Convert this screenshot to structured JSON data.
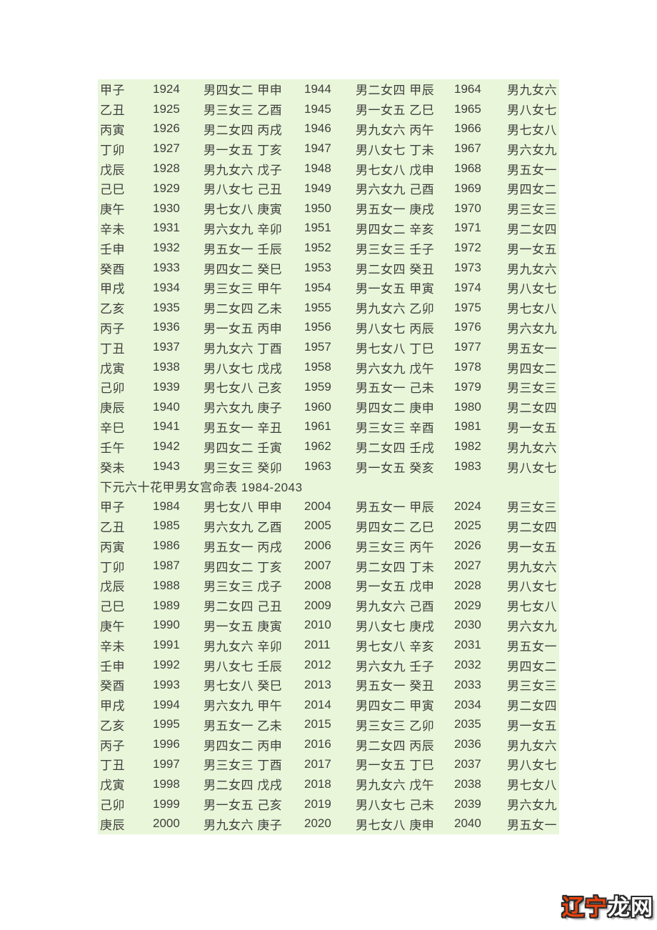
{
  "colors": {
    "page_background": "#ffffff",
    "panel_background": "#e9f6d9",
    "text": "#3e3e3e",
    "watermark_orange": "#e8430e",
    "watermark_white": "#ffffff",
    "watermark_outline": "#2b2b2b"
  },
  "section_heading": "下元六十花甲男女宫命表 1984-2043",
  "table1": {
    "rows": [
      [
        "甲子",
        "1924",
        "男四女二 甲申",
        "1944",
        "男二女四 甲辰",
        "1964",
        "男九女六"
      ],
      [
        "乙丑",
        "1925",
        "男三女三 乙酉",
        "1945",
        "男一女五 乙巳",
        "1965",
        "男八女七"
      ],
      [
        "丙寅",
        "1926",
        "男二女四 丙戌",
        "1946",
        "男九女六 丙午",
        "1966",
        "男七女八"
      ],
      [
        "丁卯",
        "1927",
        "男一女五 丁亥",
        "1947",
        "男八女七 丁未",
        "1967",
        "男六女九"
      ],
      [
        "戊辰",
        "1928",
        "男九女六 戊子",
        "1948",
        "男七女八 戊申",
        "1968",
        "男五女一"
      ],
      [
        "己巳",
        "1929",
        "男八女七 己丑",
        "1949",
        "男六女九 己酉",
        "1969",
        "男四女二"
      ],
      [
        "庚午",
        "1930",
        "男七女八 庚寅",
        "1950",
        "男五女一 庚戌",
        "1970",
        "男三女三"
      ],
      [
        "辛未",
        "1931",
        "男六女九 辛卯",
        "1951",
        "男四女二 辛亥",
        "1971",
        "男二女四"
      ],
      [
        "壬申",
        "1932",
        "男五女一 壬辰",
        "1952",
        "男三女三 壬子",
        "1972",
        "男一女五"
      ],
      [
        "癸酉",
        "1933",
        "男四女二 癸巳",
        "1953",
        "男二女四 癸丑",
        "1973",
        "男九女六"
      ],
      [
        "甲戌",
        "1934",
        "男三女三 甲午",
        "1954",
        "男一女五 甲寅",
        "1974",
        "男八女七"
      ],
      [
        "乙亥",
        "1935",
        "男二女四 乙未",
        "1955",
        "男九女六 乙卯",
        "1975",
        "男七女八"
      ],
      [
        "丙子",
        "1936",
        "男一女五 丙申",
        "1956",
        "男八女七 丙辰",
        "1976",
        "男六女九"
      ],
      [
        "丁丑",
        "1937",
        "男九女六 丁酉",
        "1957",
        "男七女八 丁巳",
        "1977",
        "男五女一"
      ],
      [
        "戊寅",
        "1938",
        "男八女七 戊戌",
        "1958",
        "男六女九 戊午",
        "1978",
        "男四女二"
      ],
      [
        "己卯",
        "1939",
        "男七女八 己亥",
        "1959",
        "男五女一 己未",
        "1979",
        "男三女三"
      ],
      [
        "庚辰",
        "1940",
        "男六女九 庚子",
        "1960",
        "男四女二 庚申",
        "1980",
        "男二女四"
      ],
      [
        "辛巳",
        "1941",
        "男五女一 辛丑",
        "1961",
        "男三女三 辛酉",
        "1981",
        "男一女五"
      ],
      [
        "壬午",
        "1942",
        "男四女二 壬寅",
        "1962",
        "男二女四 壬戌",
        "1982",
        "男九女六"
      ],
      [
        "癸未",
        "1943",
        "男三女三 癸卯",
        "1963",
        "男一女五 癸亥",
        "1983",
        "男八女七"
      ]
    ]
  },
  "table2": {
    "rows": [
      [
        "甲子",
        "1984",
        "男七女八 甲申",
        "2004",
        "男五女一 甲辰",
        "2024",
        "男三女三"
      ],
      [
        "乙丑",
        "1985",
        "男六女九 乙酉",
        "2005",
        "男四女二 乙巳",
        "2025",
        "男二女四"
      ],
      [
        "丙寅",
        "1986",
        "男五女一 丙戌",
        "2006",
        "男三女三 丙午",
        "2026",
        "男一女五"
      ],
      [
        "丁卯",
        "1987",
        "男四女二 丁亥",
        "2007",
        "男二女四 丁未",
        "2027",
        "男九女六"
      ],
      [
        "戊辰",
        "1988",
        "男三女三 戊子",
        "2008",
        "男一女五 戊申",
        "2028",
        "男八女七"
      ],
      [
        "己巳",
        "1989",
        "男二女四 己丑",
        "2009",
        "男九女六 己酉",
        "2029",
        "男七女八"
      ],
      [
        "庚午",
        "1990",
        "男一女五 庚寅",
        "2010",
        "男八女七 庚戌",
        "2030",
        "男六女九"
      ],
      [
        "辛未",
        "1991",
        "男九女六 辛卯",
        "2011",
        "男七女八 辛亥",
        "2031",
        "男五女一"
      ],
      [
        "壬申",
        "1992",
        "男八女七 壬辰",
        "2012",
        "男六女九 壬子",
        "2032",
        "男四女二"
      ],
      [
        "癸酉",
        "1993",
        "男七女八 癸巳",
        "2013",
        "男五女一 癸丑",
        "2033",
        "男三女三"
      ],
      [
        "甲戌",
        "1994",
        "男六女九 甲午",
        "2014",
        "男四女二 甲寅",
        "2034",
        "男二女四"
      ],
      [
        "乙亥",
        "1995",
        "男五女一 乙未",
        "2015",
        "男三女三 乙卯",
        "2035",
        "男一女五"
      ],
      [
        "丙子",
        "1996",
        "男四女二 丙申",
        "2016",
        "男二女四 丙辰",
        "2036",
        "男九女六"
      ],
      [
        "丁丑",
        "1997",
        "男三女三 丁酉",
        "2017",
        "男一女五 丁巳",
        "2037",
        "男八女七"
      ],
      [
        "戊寅",
        "1998",
        "男二女四 戊戌",
        "2018",
        "男九女六 戊午",
        "2038",
        "男七女八"
      ],
      [
        "己卯",
        "1999",
        "男一女五 己亥",
        "2019",
        "男八女七 己未",
        "2039",
        "男六女九"
      ],
      [
        "庚辰",
        "2000",
        "男九女六 庚子",
        "2020",
        "男七女八 庚申",
        "2040",
        "男五女一"
      ]
    ]
  },
  "watermark": {
    "part1": "辽宁",
    "part2": "龙网"
  }
}
